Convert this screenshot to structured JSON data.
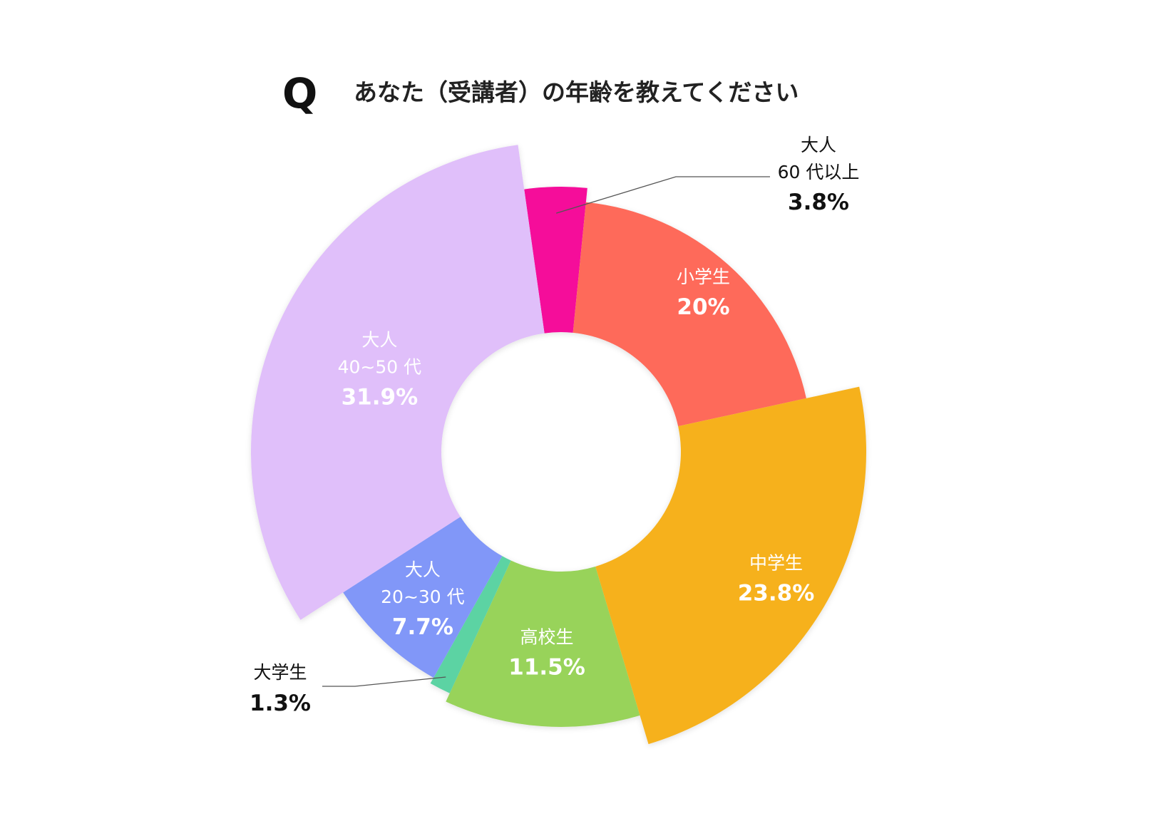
{
  "title": {
    "q_mark": "Q",
    "text": "あなた（受講者）の年齢を教えてください"
  },
  "chart_data": {
    "type": "pie",
    "donut": true,
    "unit": "%",
    "title": "あなた（受講者）の年齢を教えてください",
    "slices": [
      {
        "label": "大人 60 代以上",
        "label_lines": [
          "大人",
          "60 代以上"
        ],
        "value": 3.8,
        "value_text": "3.8%",
        "color": "#f5079a",
        "label_color": "#111111"
      },
      {
        "label": "小学生",
        "label_lines": [
          "小学生"
        ],
        "value": 20,
        "value_text": "20%",
        "color": "#fe6b5a",
        "label_color": "#ffffff"
      },
      {
        "label": "中学生",
        "label_lines": [
          "中学生"
        ],
        "value": 23.8,
        "value_text": "23.8%",
        "color": "#f6b11b",
        "label_color": "#ffffff"
      },
      {
        "label": "高校生",
        "label_lines": [
          "高校生"
        ],
        "value": 11.5,
        "value_text": "11.5%",
        "color": "#98d35a",
        "label_color": "#ffffff"
      },
      {
        "label": "大学生",
        "label_lines": [
          "大学生"
        ],
        "value": 1.3,
        "value_text": "1.3%",
        "color": "#5bd3a3",
        "label_color": "#111111"
      },
      {
        "label": "大人 20~30 代",
        "label_lines": [
          "大人",
          "20~30 代"
        ],
        "value": 7.7,
        "value_text": "7.7%",
        "color": "#8197f8",
        "label_color": "#ffffff"
      },
      {
        "label": "大人 40~50 代",
        "label_lines": [
          "大人",
          "40~50 代"
        ],
        "value": 31.9,
        "value_text": "31.9%",
        "color": "#e0bffa",
        "label_color": "#ffffff"
      }
    ]
  }
}
